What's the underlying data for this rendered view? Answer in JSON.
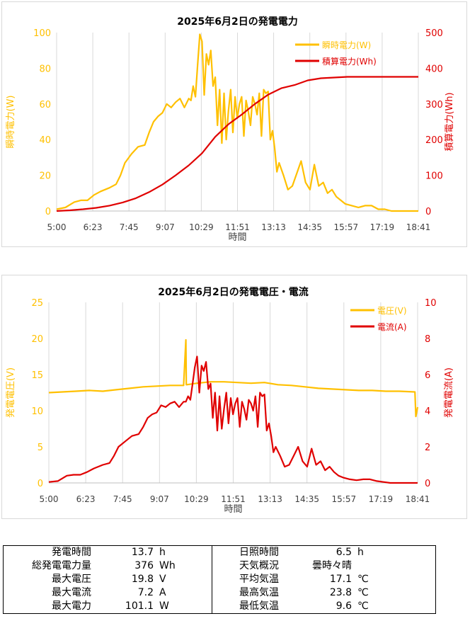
{
  "chart_data": [
    {
      "type": "line",
      "title": "2025年6月2日の発電電力",
      "xlabel": "時間",
      "ylabel_left": "瞬時電力(W)",
      "ylabel_right": "積算電力(Wh)",
      "x_ticks": [
        "5:00",
        "6:23",
        "7:45",
        "9:07",
        "10:29",
        "11:51",
        "13:13",
        "14:35",
        "15:57",
        "17:19",
        "18:41"
      ],
      "ylim_left": [
        0,
        100
      ],
      "yticks_left": [
        "0",
        "20",
        "40",
        "60",
        "80",
        "100"
      ],
      "ylim_right": [
        0,
        500
      ],
      "yticks_right": [
        "0",
        "100",
        "200",
        "300",
        "400",
        "500"
      ],
      "grid": "vertical",
      "legend_position": "top-right",
      "colors": {
        "left": "#ffc000",
        "right": "#e00000"
      },
      "series": [
        {
          "name": "瞬時電力(W)",
          "axis": "left",
          "x": [
            "5:00",
            "5:20",
            "5:40",
            "5:55",
            "6:10",
            "6:25",
            "6:40",
            "7:00",
            "7:15",
            "7:25",
            "7:35",
            "7:50",
            "8:05",
            "8:20",
            "8:30",
            "8:40",
            "8:50",
            "9:00",
            "9:10",
            "9:20",
            "9:30",
            "9:40",
            "9:50",
            "10:00",
            "10:05",
            "10:10",
            "10:15",
            "10:20",
            "10:25",
            "10:30",
            "10:35",
            "10:40",
            "10:45",
            "10:50",
            "10:55",
            "11:00",
            "11:05",
            "11:10",
            "11:15",
            "11:20",
            "11:25",
            "11:30",
            "11:35",
            "11:40",
            "11:45",
            "11:50",
            "11:55",
            "12:00",
            "12:05",
            "12:10",
            "12:15",
            "12:20",
            "12:25",
            "12:30",
            "12:35",
            "12:40",
            "12:45",
            "12:50",
            "12:55",
            "13:00",
            "13:05",
            "13:10",
            "13:15",
            "13:20",
            "13:25",
            "13:35",
            "13:45",
            "13:55",
            "14:05",
            "14:15",
            "14:25",
            "14:35",
            "14:45",
            "14:55",
            "15:05",
            "15:15",
            "15:25",
            "15:35",
            "15:45",
            "15:55",
            "16:10",
            "16:25",
            "16:40",
            "16:55",
            "17:10",
            "17:25",
            "17:40",
            "17:55",
            "18:10",
            "18:25",
            "18:41"
          ],
          "y": [
            1,
            2,
            5,
            6,
            6,
            9,
            11,
            13,
            15,
            20,
            27,
            32,
            36,
            37,
            44,
            50,
            53,
            55,
            60,
            58,
            61,
            63,
            58,
            63,
            62,
            70,
            64,
            82,
            99,
            95,
            65,
            88,
            82,
            90,
            70,
            75,
            48,
            68,
            38,
            66,
            40,
            56,
            68,
            44,
            64,
            52,
            60,
            64,
            42,
            62,
            56,
            48,
            64,
            60,
            54,
            66,
            42,
            68,
            66,
            67,
            40,
            45,
            35,
            22,
            27,
            20,
            12,
            14,
            21,
            28,
            16,
            12,
            26,
            14,
            16,
            10,
            12,
            8,
            6,
            4,
            3,
            2,
            3,
            3,
            1,
            1,
            0,
            0,
            0,
            0,
            0
          ]
        },
        {
          "name": "積算電力(Wh)",
          "axis": "right",
          "x": [
            "5:00",
            "5:30",
            "6:00",
            "6:30",
            "7:00",
            "7:30",
            "8:00",
            "8:30",
            "9:00",
            "9:30",
            "10:00",
            "10:30",
            "11:00",
            "11:30",
            "12:00",
            "12:30",
            "13:00",
            "13:30",
            "14:00",
            "14:30",
            "15:00",
            "15:30",
            "16:00",
            "16:30",
            "17:00",
            "17:30",
            "18:00",
            "18:41"
          ],
          "y": [
            0,
            2,
            5,
            9,
            15,
            24,
            36,
            53,
            74,
            100,
            128,
            162,
            208,
            243,
            270,
            300,
            326,
            344,
            353,
            366,
            372,
            374,
            376,
            376,
            376,
            376,
            376,
            376
          ]
        }
      ]
    },
    {
      "type": "line",
      "title": "2025年6月2日の発電電圧・電流",
      "xlabel": "時間",
      "ylabel_left": "発電電圧(V)",
      "ylabel_right": "発電電流(A)",
      "x_ticks": [
        "5:00",
        "6:23",
        "7:45",
        "9:07",
        "10:29",
        "11:51",
        "13:13",
        "14:35",
        "15:57",
        "17:19",
        "18:41"
      ],
      "ylim_left": [
        0,
        25
      ],
      "yticks_left": [
        "0",
        "5",
        "10",
        "15",
        "20",
        "25"
      ],
      "ylim_right": [
        0,
        10
      ],
      "yticks_right": [
        "0",
        "2",
        "4",
        "6",
        "8",
        "10"
      ],
      "grid": "vertical",
      "legend_position": "top-right",
      "colors": {
        "left": "#ffc000",
        "right": "#e00000"
      },
      "series": [
        {
          "name": "電圧(V)",
          "axis": "left",
          "x": [
            "5:00",
            "5:30",
            "6:00",
            "6:30",
            "7:00",
            "7:30",
            "8:00",
            "8:30",
            "9:00",
            "9:30",
            "10:00",
            "10:05",
            "10:06",
            "10:07",
            "10:30",
            "11:00",
            "11:30",
            "12:00",
            "12:30",
            "13:00",
            "13:30",
            "14:00",
            "14:30",
            "15:00",
            "15:30",
            "16:00",
            "16:30",
            "17:00",
            "17:30",
            "18:00",
            "18:35",
            "18:37",
            "18:41"
          ],
          "y": [
            12.5,
            12.6,
            12.7,
            12.8,
            12.7,
            12.9,
            13.1,
            13.3,
            13.4,
            13.5,
            13.5,
            19.8,
            13.6,
            13.6,
            13.8,
            14.0,
            14.0,
            13.9,
            13.8,
            13.9,
            13.6,
            13.5,
            13.3,
            13.1,
            13.0,
            12.9,
            12.8,
            12.8,
            12.7,
            12.7,
            12.6,
            9.2,
            10.5
          ]
        },
        {
          "name": "電流(A)",
          "axis": "right",
          "x": [
            "5:00",
            "5:20",
            "5:40",
            "5:55",
            "6:10",
            "6:25",
            "6:40",
            "7:00",
            "7:15",
            "7:25",
            "7:35",
            "7:50",
            "8:05",
            "8:20",
            "8:30",
            "8:40",
            "8:50",
            "9:00",
            "9:10",
            "9:20",
            "9:30",
            "9:40",
            "9:50",
            "10:00",
            "10:05",
            "10:10",
            "10:15",
            "10:20",
            "10:25",
            "10:30",
            "10:35",
            "10:40",
            "10:45",
            "10:50",
            "10:55",
            "11:00",
            "11:05",
            "11:10",
            "11:15",
            "11:20",
            "11:25",
            "11:30",
            "11:35",
            "11:40",
            "11:45",
            "11:50",
            "11:55",
            "12:00",
            "12:05",
            "12:10",
            "12:15",
            "12:20",
            "12:25",
            "12:30",
            "12:35",
            "12:40",
            "12:45",
            "12:50",
            "12:55",
            "13:00",
            "13:05",
            "13:10",
            "13:15",
            "13:20",
            "13:25",
            "13:35",
            "13:45",
            "13:55",
            "14:05",
            "14:15",
            "14:25",
            "14:35",
            "14:45",
            "14:55",
            "15:05",
            "15:15",
            "15:25",
            "15:35",
            "15:45",
            "15:55",
            "16:10",
            "16:25",
            "16:40",
            "16:55",
            "17:10",
            "17:25",
            "17:40",
            "17:55",
            "18:10",
            "18:25",
            "18:41"
          ],
          "y": [
            0.05,
            0.1,
            0.4,
            0.45,
            0.45,
            0.6,
            0.8,
            1.0,
            1.1,
            1.5,
            2.0,
            2.3,
            2.6,
            2.7,
            3.1,
            3.6,
            3.8,
            3.9,
            4.3,
            4.2,
            4.4,
            4.5,
            4.2,
            4.5,
            4.5,
            4.8,
            4.6,
            5.5,
            6.4,
            7.0,
            5.0,
            6.5,
            6.2,
            6.7,
            5.2,
            5.5,
            3.6,
            5.0,
            2.9,
            4.8,
            3.0,
            4.1,
            5.0,
            3.3,
            4.7,
            3.8,
            4.4,
            4.7,
            3.1,
            4.5,
            4.1,
            3.5,
            4.6,
            4.4,
            4.0,
            4.8,
            3.1,
            5.0,
            4.8,
            4.9,
            2.9,
            3.3,
            2.6,
            1.7,
            2.0,
            1.5,
            0.9,
            1.0,
            1.5,
            2.0,
            1.2,
            0.9,
            1.9,
            1.0,
            1.2,
            0.7,
            0.9,
            0.6,
            0.4,
            0.3,
            0.2,
            0.15,
            0.2,
            0.2,
            0.1,
            0.05,
            0,
            0,
            0,
            0,
            0
          ]
        }
      ]
    }
  ],
  "summary": {
    "rows": [
      {
        "l_label": "発電時間",
        "l_value": "13.7",
        "l_unit": "h",
        "r_label": "日照時間",
        "r_value": "6.5",
        "r_unit": "h"
      },
      {
        "l_label": "総発電電力量",
        "l_value": "376",
        "l_unit": "Wh",
        "r_label": "天気概況",
        "r_value": "曇時々晴",
        "r_unit": ""
      },
      {
        "l_label": "最大電圧",
        "l_value": "19.8",
        "l_unit": "V",
        "r_label": "平均気温",
        "r_value": "17.1",
        "r_unit": "℃"
      },
      {
        "l_label": "最大電流",
        "l_value": "7.2",
        "l_unit": "A",
        "r_label": "最高気温",
        "r_value": "23.8",
        "r_unit": "℃"
      },
      {
        "l_label": "最大電力",
        "l_value": "101.1",
        "l_unit": "W",
        "r_label": "最低気温",
        "r_value": "9.6",
        "r_unit": "℃"
      }
    ]
  }
}
